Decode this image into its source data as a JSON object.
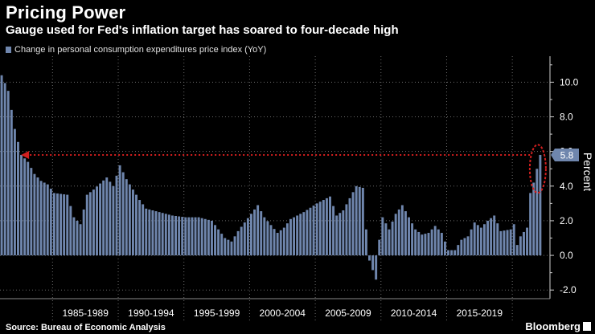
{
  "header": {
    "title": "Pricing Power",
    "subtitle": "Gauge used for Fed's inflation target has soared to four-decade high",
    "legend_label": "Change in personal consumption expenditures price index (YoY)"
  },
  "footer": {
    "source": "Source: Bureau of Economic Analysis",
    "brand": "Bloomberg"
  },
  "colors": {
    "bar": "#6f86ad",
    "grid": "#6b6b6b",
    "annotation": "#d21f1f",
    "callout_bg": "#6f86ad"
  },
  "chart_data": {
    "type": "bar",
    "title": "Pricing Power",
    "series_name": "Change in personal consumption expenditures price index (YoY)",
    "ylabel": "Percent",
    "ylim": [
      -2.5,
      11.5
    ],
    "yticks": [
      -2.0,
      0.0,
      2.0,
      4.0,
      6.0,
      8.0,
      10.0
    ],
    "ytick_labels": [
      "-2.0",
      "0.0",
      "2.0",
      "4.0",
      "6.0",
      "8.0",
      "10.0"
    ],
    "x_start": 1981.0,
    "x_step_years": 0.25,
    "x_range": [
      1981.0,
      2022.5
    ],
    "x_groups": [
      {
        "label": "1985-1989",
        "from": 1985,
        "to": 1990
      },
      {
        "label": "1990-1994",
        "from": 1990,
        "to": 1995
      },
      {
        "label": "1995-1999",
        "from": 1995,
        "to": 2000
      },
      {
        "label": "2000-2004",
        "from": 2000,
        "to": 2005
      },
      {
        "label": "2005-2009",
        "from": 2005,
        "to": 2010
      },
      {
        "label": "2010-2014",
        "from": 2010,
        "to": 2015
      },
      {
        "label": "2015-2019",
        "from": 2015,
        "to": 2020
      }
    ],
    "keypoints": [
      [
        1981.0,
        10.4
      ],
      [
        1981.5,
        9.5
      ],
      [
        1982.0,
        7.3
      ],
      [
        1982.5,
        5.8
      ],
      [
        1983.0,
        5.4
      ],
      [
        1983.5,
        4.7
      ],
      [
        1984.0,
        4.3
      ],
      [
        1984.5,
        4.1
      ],
      [
        1985.0,
        3.6
      ],
      [
        1986.0,
        3.5
      ],
      [
        1986.5,
        2.2
      ],
      [
        1987.0,
        1.8
      ],
      [
        1987.5,
        3.5
      ],
      [
        1988.0,
        3.8
      ],
      [
        1989.0,
        4.5
      ],
      [
        1989.5,
        4.0
      ],
      [
        1990.0,
        5.2
      ],
      [
        1990.5,
        4.4
      ],
      [
        1991.0,
        3.8
      ],
      [
        1991.5,
        3.2
      ],
      [
        1992.0,
        2.7
      ],
      [
        1994.0,
        2.3
      ],
      [
        1995.0,
        2.2
      ],
      [
        1996.0,
        2.2
      ],
      [
        1997.0,
        2.0
      ],
      [
        1998.0,
        1.0
      ],
      [
        1998.5,
        0.8
      ],
      [
        1999.0,
        1.4
      ],
      [
        2000.0,
        2.4
      ],
      [
        2000.5,
        2.9
      ],
      [
        2001.0,
        2.2
      ],
      [
        2002.0,
        1.3
      ],
      [
        2002.5,
        1.6
      ],
      [
        2003.0,
        2.1
      ],
      [
        2004.0,
        2.5
      ],
      [
        2005.0,
        3.0
      ],
      [
        2006.0,
        3.4
      ],
      [
        2006.5,
        2.3
      ],
      [
        2007.0,
        2.6
      ],
      [
        2008.0,
        4.0
      ],
      [
        2008.5,
        3.9
      ],
      [
        2008.75,
        1.5
      ],
      [
        2009.0,
        -0.3
      ],
      [
        2009.5,
        -1.4
      ],
      [
        2009.75,
        0.9
      ],
      [
        2010.0,
        2.2
      ],
      [
        2010.5,
        1.5
      ],
      [
        2011.0,
        2.4
      ],
      [
        2011.5,
        2.9
      ],
      [
        2012.0,
        2.2
      ],
      [
        2012.5,
        1.5
      ],
      [
        2013.0,
        1.2
      ],
      [
        2013.5,
        1.3
      ],
      [
        2014.0,
        1.7
      ],
      [
        2014.5,
        1.3
      ],
      [
        2015.0,
        0.3
      ],
      [
        2015.5,
        0.3
      ],
      [
        2016.0,
        0.9
      ],
      [
        2016.5,
        1.1
      ],
      [
        2017.0,
        1.9
      ],
      [
        2017.5,
        1.6
      ],
      [
        2018.0,
        2.0
      ],
      [
        2018.5,
        2.3
      ],
      [
        2019.0,
        1.4
      ],
      [
        2019.75,
        1.5
      ],
      [
        2020.0,
        1.8
      ],
      [
        2020.25,
        0.6
      ],
      [
        2020.5,
        1.1
      ],
      [
        2021.0,
        1.6
      ],
      [
        2021.25,
        3.6
      ],
      [
        2021.5,
        4.2
      ],
      [
        2021.75,
        5.0
      ],
      [
        2022.0,
        5.8
      ]
    ],
    "annotation": {
      "reference_value": 5.8,
      "callout_label": "5.8",
      "highlighted_bar_year": 2022.0,
      "style": "dotted arrow from latest value back to early 1980s with circled latest bars"
    }
  }
}
